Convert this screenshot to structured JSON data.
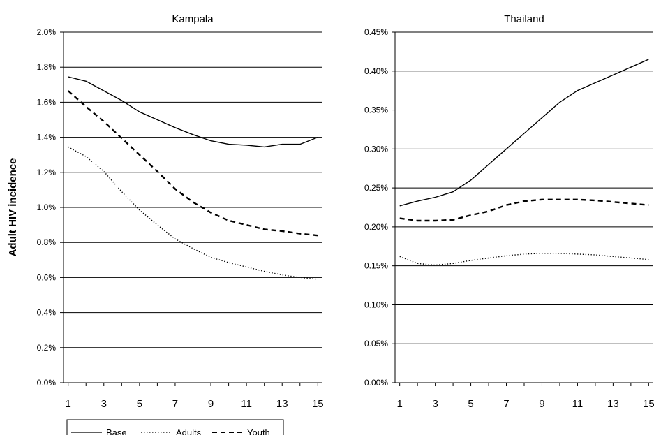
{
  "ylabel": "Adult HIV incidence",
  "legend": {
    "placement": "bottom-left"
  },
  "chart_data": [
    {
      "type": "line",
      "title": "Kampala",
      "x": [
        1,
        2,
        3,
        4,
        5,
        6,
        7,
        8,
        9,
        10,
        11,
        12,
        13,
        14,
        15
      ],
      "x_ticks": [
        "1",
        "3",
        "5",
        "7",
        "9",
        "11",
        "13",
        "15"
      ],
      "y_ticks": [
        "0.0%",
        "0.2%",
        "0.4%",
        "0.6%",
        "0.8%",
        "1.0%",
        "1.2%",
        "1.4%",
        "1.6%",
        "1.8%",
        "2.0%"
      ],
      "ylim": [
        0,
        2.0
      ],
      "y_unit": "%",
      "grid": true,
      "series": [
        {
          "name": "Base",
          "style": "solid",
          "values": [
            1.745,
            1.72,
            1.665,
            1.61,
            1.545,
            1.5,
            1.455,
            1.415,
            1.38,
            1.36,
            1.355,
            1.345,
            1.36,
            1.36,
            1.4
          ]
        },
        {
          "name": "Adults",
          "style": "dotted",
          "values": [
            1.345,
            1.29,
            1.205,
            1.09,
            0.985,
            0.9,
            0.82,
            0.765,
            0.715,
            0.685,
            0.66,
            0.635,
            0.615,
            0.6,
            0.59
          ]
        },
        {
          "name": "Youth",
          "style": "dashed",
          "values": [
            1.665,
            1.575,
            1.49,
            1.395,
            1.3,
            1.205,
            1.105,
            1.03,
            0.97,
            0.925,
            0.9,
            0.875,
            0.865,
            0.85,
            0.84
          ]
        }
      ]
    },
    {
      "type": "line",
      "title": "Thailand",
      "x": [
        1,
        2,
        3,
        4,
        5,
        6,
        7,
        8,
        9,
        10,
        11,
        12,
        13,
        14,
        15
      ],
      "x_ticks": [
        "1",
        "3",
        "5",
        "7",
        "9",
        "11",
        "13",
        "15"
      ],
      "y_ticks": [
        "0.00%",
        "0.05%",
        "0.10%",
        "0.15%",
        "0.20%",
        "0.25%",
        "0.30%",
        "0.35%",
        "0.40%",
        "0.45%"
      ],
      "ylim": [
        0,
        0.45
      ],
      "y_unit": "%",
      "grid": true,
      "series": [
        {
          "name": "Base",
          "style": "solid",
          "values": [
            0.227,
            0.233,
            0.238,
            0.245,
            0.26,
            0.28,
            0.3,
            0.32,
            0.34,
            0.36,
            0.375,
            0.385,
            0.395,
            0.405,
            0.415
          ]
        },
        {
          "name": "Adults",
          "style": "dotted",
          "values": [
            0.162,
            0.153,
            0.151,
            0.153,
            0.157,
            0.16,
            0.163,
            0.165,
            0.166,
            0.166,
            0.165,
            0.164,
            0.162,
            0.16,
            0.158
          ]
        },
        {
          "name": "Youth",
          "style": "dashed",
          "values": [
            0.211,
            0.208,
            0.208,
            0.209,
            0.215,
            0.22,
            0.228,
            0.233,
            0.235,
            0.235,
            0.235,
            0.234,
            0.232,
            0.23,
            0.228
          ]
        }
      ]
    }
  ]
}
